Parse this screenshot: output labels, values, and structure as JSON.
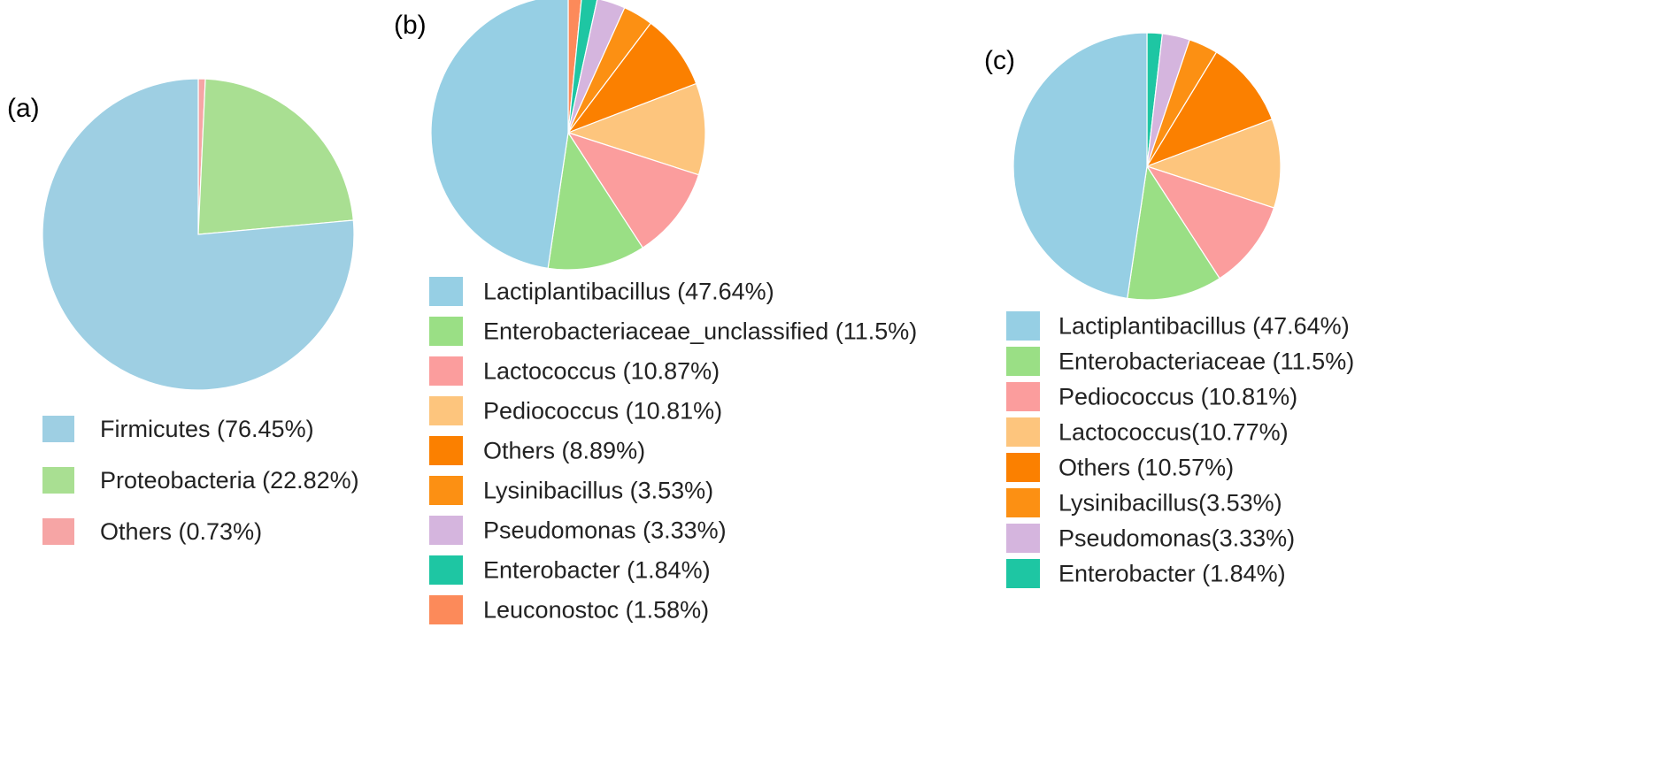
{
  "chart_data": [
    {
      "type": "pie",
      "panel_label": "(a)",
      "title": "",
      "slices": [
        {
          "label": "Firmicutes",
          "value": 76.45,
          "legend": "Firmicutes (76.45%)",
          "color": "#9ecfe3"
        },
        {
          "label": "Proteobacteria",
          "value": 22.82,
          "legend": "Proteobacteria (22.82%)",
          "color": "#a9df92"
        },
        {
          "label": "Others",
          "value": 0.73,
          "legend": "Others (0.73%)",
          "color": "#f6a5a5"
        }
      ],
      "legend_position": "bottom"
    },
    {
      "type": "pie",
      "panel_label": "(b)",
      "title": "",
      "slices": [
        {
          "label": "Lactiplantibacillus",
          "value": 47.64,
          "legend": "Lactiplantibacillus (47.64%)",
          "color": "#96cfe4"
        },
        {
          "label": "Enterobacteriaceae_unclassified",
          "value": 11.5,
          "legend": "Enterobacteriaceae_unclassified (11.5%)",
          "color": "#9adf85"
        },
        {
          "label": "Lactococcus",
          "value": 10.87,
          "legend": "Lactococcus (10.87%)",
          "color": "#fb9d9d"
        },
        {
          "label": "Pediococcus",
          "value": 10.81,
          "legend": "Pediococcus (10.81%)",
          "color": "#fdc57d"
        },
        {
          "label": "Others",
          "value": 8.89,
          "legend": "Others (8.89%)",
          "color": "#fb8000"
        },
        {
          "label": "Lysinibacillus",
          "value": 3.53,
          "legend": "Lysinibacillus (3.53%)",
          "color": "#fc9013"
        },
        {
          "label": "Pseudomonas",
          "value": 3.33,
          "legend": "Pseudomonas (3.33%)",
          "color": "#d5b5de"
        },
        {
          "label": "Enterobacter",
          "value": 1.84,
          "legend": "Enterobacter (1.84%)",
          "color": "#1ec6a3"
        },
        {
          "label": "Leuconostoc",
          "value": 1.58,
          "legend": "Leuconostoc (1.58%)",
          "color": "#fc8a5a"
        }
      ],
      "legend_position": "bottom"
    },
    {
      "type": "pie",
      "panel_label": "(c)",
      "title": "",
      "slices": [
        {
          "label": "Lactiplantibacillus",
          "value": 47.64,
          "legend": "Lactiplantibacillus (47.64%)",
          "color": "#96cfe4"
        },
        {
          "label": "Enterobacteriaceae",
          "value": 11.5,
          "legend": "Enterobacteriaceae (11.5%)",
          "color": "#9adf85"
        },
        {
          "label": "Pediococcus",
          "value": 10.81,
          "legend": "Pediococcus (10.81%)",
          "color": "#fb9d9d"
        },
        {
          "label": "Lactococcus",
          "value": 10.77,
          "legend": "Lactococcus(10.77%)",
          "color": "#fdc57d"
        },
        {
          "label": "Others",
          "value": 10.57,
          "legend": "Others (10.57%)",
          "color": "#fb8000"
        },
        {
          "label": "Lysinibacillus",
          "value": 3.53,
          "legend": "Lysinibacillus(3.53%)",
          "color": "#fc9013"
        },
        {
          "label": "Pseudomonas",
          "value": 3.33,
          "legend": "Pseudomonas(3.33%)",
          "color": "#d5b5de"
        },
        {
          "label": "Enterobacter",
          "value": 1.84,
          "legend": "Enterobacter (1.84%)",
          "color": "#1ec6a3"
        }
      ],
      "legend_position": "bottom"
    }
  ]
}
